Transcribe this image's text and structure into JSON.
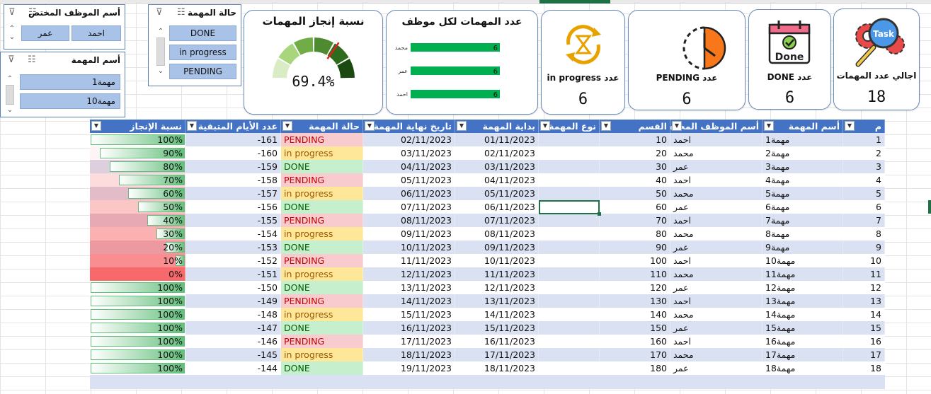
{
  "slicers": {
    "employee": {
      "title": "أسم الموظف المختص",
      "items": [
        "احمد",
        "عمر"
      ]
    },
    "task": {
      "title": "أسم المهمة",
      "items": [
        "مهمة1",
        "مهمة10"
      ]
    },
    "status": {
      "title": "حالة المهمة",
      "items": [
        "DONE",
        "in progress",
        "PENDING"
      ]
    }
  },
  "kpis": {
    "total": {
      "label": "اجالي عدد المهمات",
      "value": "18",
      "icon": "task-gear-icon"
    },
    "done": {
      "label": "عدد DONE",
      "value": "6",
      "icon": "calendar-done-icon"
    },
    "pending": {
      "label": "عدد PENDING",
      "value": "6",
      "icon": "pending-clock-icon"
    },
    "progress": {
      "label": "عدد in progress",
      "value": "6",
      "icon": "hourglass-cycle-icon"
    }
  },
  "chart_data": [
    {
      "type": "bar",
      "title": "عدد المهمات لكل موظف",
      "categories": [
        "محمد",
        "عمر",
        "احمد"
      ],
      "values": [
        6,
        6,
        6
      ],
      "orientation": "horizontal",
      "data_labels": [
        "6",
        "6",
        "6"
      ],
      "color": "#00b050"
    },
    {
      "type": "gauge",
      "title": "نسبة إنجاز المهمات",
      "value_label": "69.4%",
      "value": 0.694,
      "colors": [
        "#d9ecc4",
        "#a9d67c",
        "#70ad47",
        "#4e8b30",
        "#2f6b1c",
        "#1a4a10"
      ],
      "needle_color": "#e02020"
    }
  ],
  "table": {
    "headers": {
      "num": "م",
      "name": "أسم المهمة",
      "employee": "أسم الموظف المختص",
      "dept": "القسم",
      "type": "نوع المهمة",
      "start": "بداية المهمة",
      "end": "تاريخ نهاية المهمة",
      "status": "حالة المهمة",
      "remaining": "عدد الأيام المتبقية",
      "pct": "نسبة الإنجاز"
    },
    "rows": [
      {
        "num": "1",
        "name": "مهمة1",
        "employee": "احمد",
        "dept": "10",
        "type": "",
        "start": "01/11/2023",
        "end": "02/11/2023",
        "status": "PENDING",
        "remaining": "-161",
        "pct": "100%",
        "pct_value": 1.0
      },
      {
        "num": "2",
        "name": "مهمة2",
        "employee": "محمد",
        "dept": "20",
        "type": "",
        "start": "02/11/2023",
        "end": "03/11/2023",
        "status": "in progress",
        "remaining": "-160",
        "pct": "90%",
        "pct_value": 0.9
      },
      {
        "num": "3",
        "name": "مهمة3",
        "employee": "عمر",
        "dept": "30",
        "type": "",
        "start": "03/11/2023",
        "end": "04/11/2023",
        "status": "DONE",
        "remaining": "-159",
        "pct": "80%",
        "pct_value": 0.8
      },
      {
        "num": "4",
        "name": "مهمة4",
        "employee": "احمد",
        "dept": "40",
        "type": "",
        "start": "04/11/2023",
        "end": "05/11/2023",
        "status": "PENDING",
        "remaining": "-158",
        "pct": "70%",
        "pct_value": 0.7
      },
      {
        "num": "5",
        "name": "مهمة5",
        "employee": "محمد",
        "dept": "50",
        "type": "",
        "start": "05/11/2023",
        "end": "06/11/2023",
        "status": "in progress",
        "remaining": "-157",
        "pct": "60%",
        "pct_value": 0.6
      },
      {
        "num": "6",
        "name": "مهمة6",
        "employee": "عمر",
        "dept": "60",
        "type": "",
        "start": "06/11/2023",
        "end": "07/11/2023",
        "status": "DONE",
        "remaining": "-156",
        "pct": "50%",
        "pct_value": 0.5
      },
      {
        "num": "7",
        "name": "مهمة7",
        "employee": "احمد",
        "dept": "70",
        "type": "",
        "start": "07/11/2023",
        "end": "08/11/2023",
        "status": "PENDING",
        "remaining": "-155",
        "pct": "40%",
        "pct_value": 0.4
      },
      {
        "num": "8",
        "name": "مهمة8",
        "employee": "محمد",
        "dept": "80",
        "type": "",
        "start": "08/11/2023",
        "end": "09/11/2023",
        "status": "in progress",
        "remaining": "-154",
        "pct": "30%",
        "pct_value": 0.3
      },
      {
        "num": "9",
        "name": "مهمة9",
        "employee": "عمر",
        "dept": "90",
        "type": "",
        "start": "09/11/2023",
        "end": "10/11/2023",
        "status": "DONE",
        "remaining": "-153",
        "pct": "20%",
        "pct_value": 0.2
      },
      {
        "num": "10",
        "name": "مهمة10",
        "employee": "احمد",
        "dept": "100",
        "type": "",
        "start": "10/11/2023",
        "end": "11/11/2023",
        "status": "PENDING",
        "remaining": "-152",
        "pct": "10%",
        "pct_value": 0.1
      },
      {
        "num": "11",
        "name": "مهمة11",
        "employee": "محمد",
        "dept": "110",
        "type": "",
        "start": "11/11/2023",
        "end": "12/11/2023",
        "status": "in progress",
        "remaining": "-151",
        "pct": "0%",
        "pct_value": 0.0
      },
      {
        "num": "12",
        "name": "مهمة12",
        "employee": "عمر",
        "dept": "120",
        "type": "",
        "start": "12/11/2023",
        "end": "13/11/2023",
        "status": "DONE",
        "remaining": "-150",
        "pct": "100%",
        "pct_value": 1.0
      },
      {
        "num": "13",
        "name": "مهمة13",
        "employee": "احمد",
        "dept": "130",
        "type": "",
        "start": "13/11/2023",
        "end": "14/11/2023",
        "status": "PENDING",
        "remaining": "-149",
        "pct": "100%",
        "pct_value": 1.0
      },
      {
        "num": "14",
        "name": "مهمة14",
        "employee": "محمد",
        "dept": "140",
        "type": "",
        "start": "14/11/2023",
        "end": "15/11/2023",
        "status": "in progress",
        "remaining": "-148",
        "pct": "100%",
        "pct_value": 1.0
      },
      {
        "num": "15",
        "name": "مهمة15",
        "employee": "عمر",
        "dept": "150",
        "type": "",
        "start": "15/11/2023",
        "end": "16/11/2023",
        "status": "DONE",
        "remaining": "-147",
        "pct": "100%",
        "pct_value": 1.0
      },
      {
        "num": "16",
        "name": "مهمة16",
        "employee": "احمد",
        "dept": "160",
        "type": "",
        "start": "16/11/2023",
        "end": "17/11/2023",
        "status": "PENDING",
        "remaining": "-146",
        "pct": "100%",
        "pct_value": 1.0
      },
      {
        "num": "17",
        "name": "مهمة17",
        "employee": "محمد",
        "dept": "170",
        "type": "",
        "start": "17/11/2023",
        "end": "18/11/2023",
        "status": "in progress",
        "remaining": "-145",
        "pct": "100%",
        "pct_value": 1.0
      },
      {
        "num": "18",
        "name": "مهمة18",
        "employee": "عمر",
        "dept": "180",
        "type": "",
        "start": "18/11/2023",
        "end": "19/11/2023",
        "status": "DONE",
        "remaining": "-144",
        "pct": "100%",
        "pct_value": 1.0
      }
    ]
  },
  "colors": {
    "header_blue": "#4472c4",
    "band_blue": "#d9e1f2",
    "pending_fill": "#f8cbcf",
    "progress_fill": "#ffe79a",
    "done_fill": "#c6efce",
    "bar_green": "#63be7b",
    "low_pct_red": "#f8696b"
  }
}
